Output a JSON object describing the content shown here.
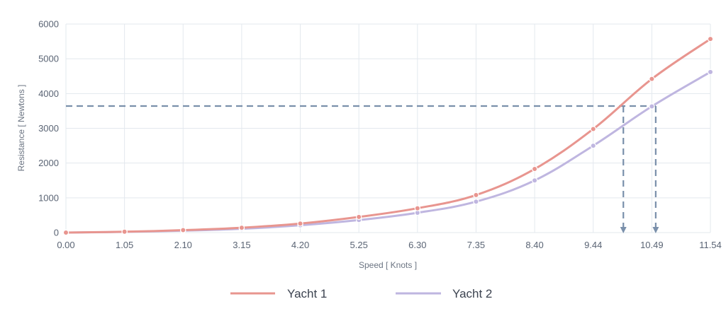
{
  "chart_data": {
    "type": "line",
    "title": "",
    "xlabel": "Speed [ Knots ]",
    "ylabel": "Resistance [ Newtons ]",
    "x_tick_labels": [
      "0.00",
      "1.05",
      "2.10",
      "3.15",
      "4.20",
      "5.25",
      "6.30",
      "7.35",
      "8.40",
      "9.44",
      "10.49",
      "11.54"
    ],
    "y_tick_labels": [
      "0",
      "1000",
      "2000",
      "3000",
      "4000",
      "5000",
      "6000"
    ],
    "x": [
      0.0,
      1.05,
      2.1,
      3.15,
      4.2,
      5.25,
      6.3,
      7.35,
      8.4,
      9.44,
      10.49,
      11.54
    ],
    "xlim": [
      0,
      11.54
    ],
    "ylim": [
      0,
      6000
    ],
    "grid": true,
    "legend_position": "bottom",
    "series": [
      {
        "name": "Yacht 1",
        "color": "#e8958f",
        "values": [
          0,
          25,
          70,
          140,
          260,
          450,
          700,
          1080,
          1830,
          2980,
          4420,
          5570
        ]
      },
      {
        "name": "Yacht 2",
        "color": "#bfb6e0",
        "values": [
          0,
          20,
          55,
          110,
          210,
          360,
          570,
          890,
          1500,
          2500,
          3630,
          4620
        ]
      }
    ],
    "annotations": {
      "target_resistance": 3640,
      "yacht1_speed_at_target": 9.98,
      "yacht2_speed_at_target": 10.56,
      "line_color": "#7a90ab"
    }
  }
}
